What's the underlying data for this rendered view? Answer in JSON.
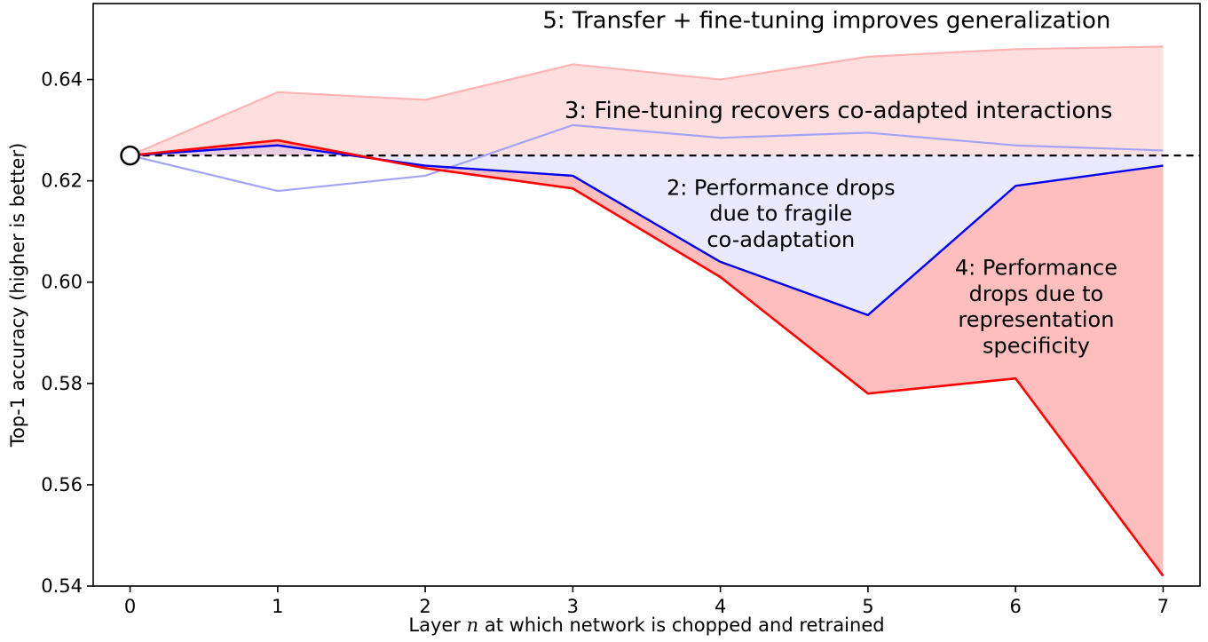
{
  "figure": {
    "background": "#ffffff"
  },
  "chart_data": {
    "type": "line",
    "title": "",
    "xlabel_parts": [
      {
        "text": "Layer ",
        "italic": false
      },
      {
        "text": "n",
        "italic": true
      },
      {
        "text": " at which network is chopped and retrained",
        "italic": false
      }
    ],
    "ylabel": "Top-1 accuracy (higher is better)",
    "xlim": [
      -0.25,
      7.25
    ],
    "ylim": [
      0.54,
      0.655
    ],
    "grid": false,
    "legend": "none",
    "xticks": [
      0,
      1,
      2,
      3,
      4,
      5,
      6,
      7
    ],
    "xtick_labels": [
      "0",
      "1",
      "2",
      "3",
      "4",
      "5",
      "6",
      "7"
    ],
    "yticks": [
      0.54,
      0.56,
      0.58,
      0.6,
      0.62,
      0.64
    ],
    "ytick_labels": [
      "0.54",
      "0.56",
      "0.58",
      "0.60",
      "0.62",
      "0.64"
    ],
    "x": [
      0,
      1,
      2,
      3,
      4,
      5,
      6,
      7
    ],
    "series": [
      {
        "id": "baseline",
        "name": "base-accuracy-dashed-line",
        "color": "#000000",
        "width": 2.2,
        "dash": "8 6",
        "extend_right": true,
        "values": [
          0.625,
          0.625,
          0.625,
          0.625,
          0.625,
          0.625,
          0.625,
          0.625
        ]
      },
      {
        "id": "bnb_plus",
        "name": "line-3-fine-tuning-recovers",
        "color": "#a3a3f7",
        "width": 2.2,
        "values": [
          0.625,
          0.618,
          0.621,
          0.631,
          0.6285,
          0.6295,
          0.627,
          0.626
        ]
      },
      {
        "id": "anb_plus",
        "name": "line-5-transfer-plus-fine-tuning",
        "color": "#ffb4b4",
        "width": 2.2,
        "values": [
          0.625,
          0.6375,
          0.636,
          0.643,
          0.64,
          0.6445,
          0.646,
          0.6465
        ]
      },
      {
        "id": "bnb",
        "name": "line-2-fragile-coadaptation",
        "color": "#0000f0",
        "width": 2.4,
        "values": [
          0.625,
          0.627,
          0.623,
          0.621,
          0.604,
          0.5935,
          0.619,
          0.623
        ]
      },
      {
        "id": "anb",
        "name": "line-4-representation-specificity",
        "color": "#ff0000",
        "width": 2.6,
        "values": [
          0.625,
          0.628,
          0.6225,
          0.6185,
          0.601,
          0.578,
          0.581,
          0.542
        ]
      }
    ],
    "fills": [
      {
        "upper": "anb_plus",
        "lower": "baseline",
        "color": "rgba(255,60,60,0.17)",
        "name": "region-5-fill"
      },
      {
        "upper": "baseline",
        "lower": "bnb",
        "color": "rgba(80,80,255,0.12)",
        "name": "region-2-fill"
      },
      {
        "upper": "bnb",
        "lower": "anb",
        "color": "rgba(255,30,30,0.29)",
        "name": "region-4-fill"
      }
    ],
    "marker": {
      "x": 0,
      "y": 0.625,
      "r": 10
    },
    "annotations": [
      {
        "name": "annotation-5",
        "lines": [
          "5: Transfer + fine-tuning improves generalization"
        ],
        "x": 4.72,
        "y": 0.6518,
        "size": 26
      },
      {
        "name": "annotation-3",
        "lines": [
          "3: Fine-tuning recovers co-adapted interactions"
        ],
        "x": 4.8,
        "y": 0.634,
        "size": 26
      },
      {
        "name": "annotation-2",
        "lines": [
          "2: Performance drops",
          "due to fragile",
          "co-adaptation"
        ],
        "x": 4.41,
        "y": 0.6187,
        "size": 24
      },
      {
        "name": "annotation-4",
        "lines": [
          "4: Performance",
          "drops due to",
          "representation",
          "specificity"
        ],
        "x": 6.14,
        "y": 0.6029,
        "size": 24
      }
    ]
  }
}
